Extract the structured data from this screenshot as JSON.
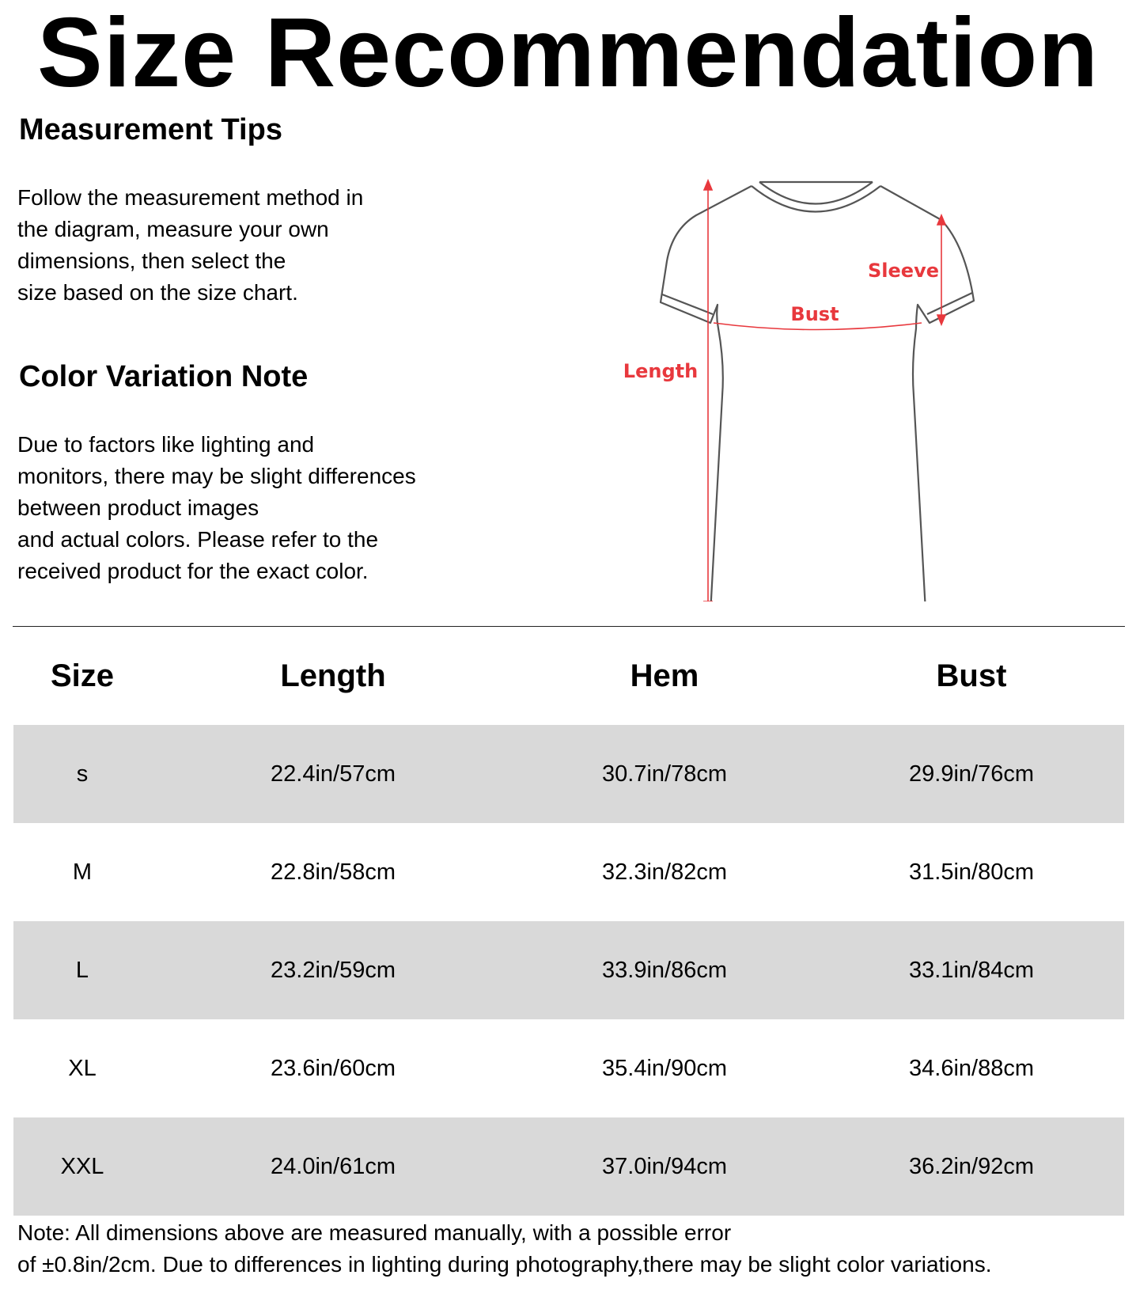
{
  "title": "Size Recommendation",
  "measurement_tips": {
    "heading": "Measurement Tips",
    "lines": [
      "Follow the measurement method in",
      "the diagram, measure your own",
      "dimensions, then select the",
      "size based on the size chart."
    ]
  },
  "color_note": {
    "heading": "Color Variation Note",
    "lines": [
      "Due to factors like lighting and",
      "monitors, there may be slight differences",
      "between product images",
      "and actual colors. Please refer to the",
      "received product for the exact color."
    ]
  },
  "diagram": {
    "labels": {
      "length": "Length",
      "bust": "Bust",
      "sleeve": "Sleeve"
    },
    "line_color": "#555555",
    "accent_color": "#e8383d"
  },
  "table": {
    "headers": [
      "Size",
      "Length",
      "Hem",
      "Bust"
    ],
    "rows": [
      [
        "s",
        "22.4in/57cm",
        "30.7in/78cm",
        "29.9in/76cm"
      ],
      [
        "M",
        "22.8in/58cm",
        "32.3in/82cm",
        "31.5in/80cm"
      ],
      [
        "L",
        "23.2in/59cm",
        "33.9in/86cm",
        "33.1in/84cm"
      ],
      [
        "XL",
        "23.6in/60cm",
        "35.4in/90cm",
        "34.6in/88cm"
      ],
      [
        "XXL",
        "24.0in/61cm",
        "37.0in/94cm",
        "36.2in/92cm"
      ]
    ],
    "stripe_color": "#d9d9d9"
  },
  "note": {
    "lines": [
      "Note: All dimensions above are measured manually, with a possible error",
      "of ±0.8in/2cm. Due to differences in lighting during photography,there may be slight color variations."
    ]
  }
}
